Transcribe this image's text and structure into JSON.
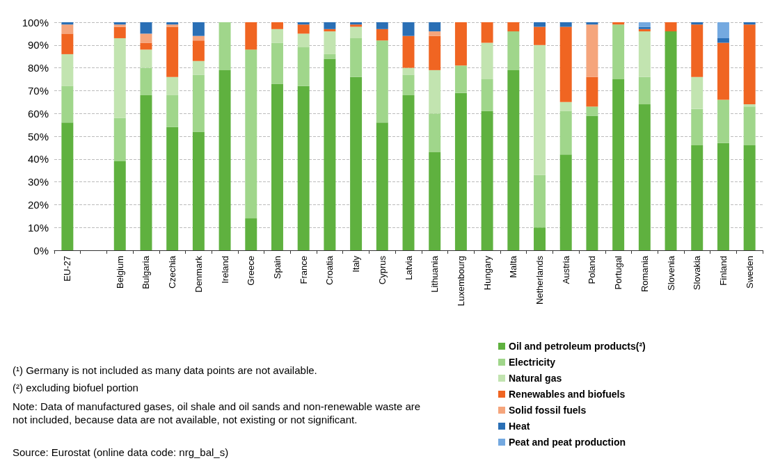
{
  "chart_data": {
    "type": "bar",
    "stacked": true,
    "categories": [
      "EU-27",
      null,
      "Belgium",
      "Bulgaria",
      "Czechia",
      "Denmark",
      "Ireland",
      "Greece",
      "Spain",
      "France",
      "Croatia",
      "Italy",
      "Cyprus",
      "Latvia",
      "Lithuania",
      "Luxembourg",
      "Hungary",
      "Malta",
      "Netherlands",
      "Austria",
      "Poland",
      "Portugal",
      "Romania",
      "Slovenia",
      "Slovakia",
      "Finland",
      "Sweden"
    ],
    "series": [
      {
        "name": "Oil and petroleum products(²)",
        "color": "#5fb13f",
        "values": [
          56,
          null,
          39,
          68,
          54,
          52,
          79,
          14,
          73,
          72,
          84,
          76,
          56,
          68,
          43,
          69,
          61,
          79,
          10,
          42,
          59,
          75,
          64,
          96,
          46,
          47,
          46
        ]
      },
      {
        "name": "Electricity",
        "color": "#a0d68b",
        "values": [
          16,
          null,
          19,
          12,
          14,
          25,
          21,
          74,
          18,
          17,
          2,
          17,
          36,
          9,
          17,
          12,
          14,
          17,
          23,
          19,
          4,
          24,
          12,
          0,
          16,
          19,
          17
        ]
      },
      {
        "name": "Natural gas",
        "color": "#c2e4b0",
        "values": [
          14,
          null,
          35,
          8,
          8,
          6,
          0,
          0,
          6,
          6,
          10,
          5,
          0,
          3,
          19,
          0,
          16,
          0,
          57,
          4,
          0,
          0,
          20,
          0,
          14,
          0,
          1
        ]
      },
      {
        "name": "Renewables and biofuels",
        "color": "#f06522",
        "values": [
          9,
          null,
          5,
          3,
          22,
          9,
          0,
          12,
          3,
          4,
          1,
          1,
          5,
          14,
          15,
          19,
          9,
          4,
          8,
          33,
          13,
          1,
          1,
          4,
          23,
          25,
          35
        ]
      },
      {
        "name": "Solid fossil fuels",
        "color": "#f5a57c",
        "values": [
          4,
          null,
          1,
          4,
          1,
          2,
          0,
          0,
          0,
          0,
          0,
          0,
          0,
          0,
          2,
          0,
          0,
          0,
          0,
          0,
          23,
          0,
          0,
          0,
          0,
          0,
          0
        ]
      },
      {
        "name": "Heat",
        "color": "#2a6fb5",
        "values": [
          1,
          null,
          1,
          5,
          1,
          6,
          0,
          0,
          0,
          1,
          3,
          1,
          3,
          6,
          4,
          0,
          0,
          0,
          2,
          2,
          1,
          0,
          1,
          0,
          1,
          2,
          1
        ]
      },
      {
        "name": "Peat and peat production",
        "color": "#74a9e0",
        "values": [
          0,
          null,
          0,
          0,
          0,
          0,
          0,
          0,
          0,
          0,
          0,
          0,
          0,
          0,
          0,
          0,
          0,
          0,
          0,
          0,
          0,
          0,
          2,
          0,
          0,
          7,
          0
        ]
      }
    ],
    "ylim": [
      0,
      100
    ],
    "yticks": [
      {
        "value": 0,
        "label": "0%"
      },
      {
        "value": 10,
        "label": "10%"
      },
      {
        "value": 20,
        "label": "20%"
      },
      {
        "value": 30,
        "label": "30%"
      },
      {
        "value": 40,
        "label": "40%"
      },
      {
        "value": 50,
        "label": "50%"
      },
      {
        "value": 60,
        "label": "60%"
      },
      {
        "value": 70,
        "label": "70%"
      },
      {
        "value": 80,
        "label": "80%"
      },
      {
        "value": 90,
        "label": "90%"
      },
      {
        "value": 100,
        "label": "100%"
      }
    ],
    "grid": "y",
    "legend": "bottom right",
    "annotations": [
      "(¹) Germany is not included as many data points are not available.",
      "(²) excluding biofuel portion",
      "Note: Data of manufactured gases, oil shale and oil sands and non-renewable waste are not included, because data are not available, not existing or not significant.",
      "Source: Eurostat (online data code: nrg_bal_s)"
    ]
  }
}
